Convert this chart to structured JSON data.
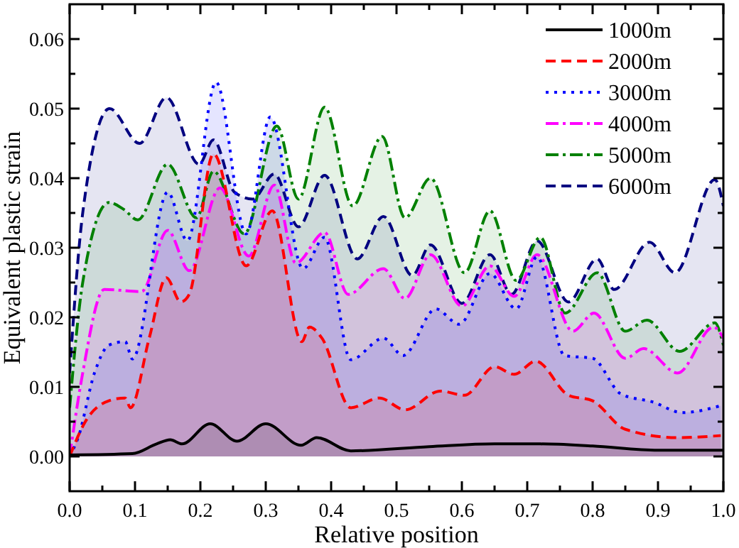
{
  "chart_data": {
    "type": "area",
    "xlabel": "Relative position",
    "ylabel": "Equivalent plastic strain",
    "xlim": [
      0,
      1
    ],
    "ylim": [
      -0.005,
      0.065
    ],
    "xticks": [
      {
        "value": 0,
        "label": "0.0"
      },
      {
        "value": 0.05,
        "label": null
      },
      {
        "value": 0.1,
        "label": "0.1"
      },
      {
        "value": 0.15,
        "label": null
      },
      {
        "value": 0.2,
        "label": "0.2"
      },
      {
        "value": 0.25,
        "label": null
      },
      {
        "value": 0.3,
        "label": "0.3"
      },
      {
        "value": 0.35,
        "label": null
      },
      {
        "value": 0.4,
        "label": "0.4"
      },
      {
        "value": 0.45,
        "label": null
      },
      {
        "value": 0.5,
        "label": "0.5"
      },
      {
        "value": 0.55,
        "label": null
      },
      {
        "value": 0.6,
        "label": "0.6"
      },
      {
        "value": 0.65,
        "label": null
      },
      {
        "value": 0.7,
        "label": "0.7"
      },
      {
        "value": 0.75,
        "label": null
      },
      {
        "value": 0.8,
        "label": "0.8"
      },
      {
        "value": 0.85,
        "label": null
      },
      {
        "value": 0.9,
        "label": "0.9"
      },
      {
        "value": 0.95,
        "label": null
      },
      {
        "value": 1,
        "label": "1.0"
      }
    ],
    "yticks": [
      {
        "value": 0,
        "label": "0.00"
      },
      {
        "value": 0.005,
        "label": null
      },
      {
        "value": 0.01,
        "label": "0.01"
      },
      {
        "value": 0.015,
        "label": null
      },
      {
        "value": 0.02,
        "label": "0.02"
      },
      {
        "value": 0.025,
        "label": null
      },
      {
        "value": 0.03,
        "label": "0.03"
      },
      {
        "value": 0.035,
        "label": null
      },
      {
        "value": 0.04,
        "label": "0.04"
      },
      {
        "value": 0.045,
        "label": null
      },
      {
        "value": 0.05,
        "label": "0.05"
      },
      {
        "value": 0.055,
        "label": null
      },
      {
        "value": 0.06,
        "label": "0.06"
      }
    ],
    "legend": "top right",
    "grid": false,
    "series": [
      {
        "name": "1000m",
        "color": "#000000",
        "line_style": "solid",
        "x": [
          0,
          0.096,
          0.133,
          0.154,
          0.172,
          0.215,
          0.256,
          0.3,
          0.354,
          0.378,
          0.43,
          0.55,
          0.65,
          0.72,
          0.8,
          0.9,
          1
        ],
        "values": [
          0.0002,
          0.0004,
          0.0018,
          0.0024,
          0.0018,
          0.0047,
          0.0022,
          0.0047,
          0.0016,
          0.0027,
          0.0008,
          0.0014,
          0.0018,
          0.0018,
          0.0015,
          0.0009,
          0.0009
        ]
      },
      {
        "name": "2000m",
        "color": "#ff0000",
        "line_style": "dashed",
        "x": [
          0,
          0.024,
          0.06,
          0.085,
          0.093,
          0.122,
          0.148,
          0.17,
          0.183,
          0.22,
          0.27,
          0.31,
          0.355,
          0.367,
          0.386,
          0.43,
          0.474,
          0.513,
          0.567,
          0.604,
          0.65,
          0.68,
          0.713,
          0.763,
          0.8,
          0.85,
          0.93,
          0.996
        ],
        "values": [
          0,
          0.005,
          0.008,
          0.0084,
          0.007,
          0.0171,
          0.0257,
          0.0222,
          0.0233,
          0.0435,
          0.0274,
          0.0353,
          0.0165,
          0.0186,
          0.017,
          0.007,
          0.0084,
          0.0067,
          0.0094,
          0.0088,
          0.0129,
          0.0118,
          0.0137,
          0.0088,
          0.008,
          0.0039,
          0.0027,
          0.003
        ]
      },
      {
        "name": "3000m",
        "color": "#0000ff",
        "line_style": "dotted",
        "x": [
          0,
          0.013,
          0.038,
          0.06,
          0.085,
          0.096,
          0.15,
          0.18,
          0.224,
          0.27,
          0.307,
          0.357,
          0.39,
          0.43,
          0.48,
          0.51,
          0.56,
          0.596,
          0.643,
          0.683,
          0.715,
          0.757,
          0.8,
          0.843,
          0.893,
          0.937,
          0.996
        ],
        "values": [
          0,
          0.0027,
          0.012,
          0.016,
          0.0165,
          0.014,
          0.038,
          0.031,
          0.0538,
          0.032,
          0.0488,
          0.027,
          0.0315,
          0.0139,
          0.017,
          0.0145,
          0.0212,
          0.019,
          0.0263,
          0.0212,
          0.0287,
          0.0145,
          0.0141,
          0.009,
          0.0078,
          0.0063,
          0.0073
        ]
      },
      {
        "name": "4000m",
        "color": "#ff00ff",
        "line_style": "dashdot",
        "x": [
          0,
          0.02,
          0.053,
          0.11,
          0.15,
          0.183,
          0.23,
          0.274,
          0.313,
          0.346,
          0.39,
          0.426,
          0.48,
          0.513,
          0.552,
          0.6,
          0.643,
          0.68,
          0.715,
          0.77,
          0.802,
          0.85,
          0.878,
          0.93,
          0.985,
          1
        ],
        "values": [
          0,
          0.012,
          0.024,
          0.0237,
          0.0325,
          0.0267,
          0.0386,
          0.0288,
          0.039,
          0.0278,
          0.0322,
          0.0233,
          0.027,
          0.0227,
          0.029,
          0.0216,
          0.0274,
          0.023,
          0.029,
          0.018,
          0.0206,
          0.0141,
          0.0155,
          0.012,
          0.0186,
          0.017
        ]
      },
      {
        "name": "5000m",
        "color": "#008000",
        "line_style": "dashdot",
        "x": [
          0,
          0.02,
          0.06,
          0.083,
          0.104,
          0.15,
          0.194,
          0.22,
          0.267,
          0.317,
          0.35,
          0.39,
          0.433,
          0.478,
          0.513,
          0.552,
          0.604,
          0.643,
          0.683,
          0.72,
          0.758,
          0.807,
          0.85,
          0.883,
          0.933,
          0.987,
          1
        ],
        "values": [
          0.007,
          0.025,
          0.0365,
          0.0355,
          0.034,
          0.042,
          0.0343,
          0.041,
          0.032,
          0.0475,
          0.037,
          0.0502,
          0.036,
          0.046,
          0.0343,
          0.04,
          0.0264,
          0.0353,
          0.0253,
          0.0315,
          0.0206,
          0.0264,
          0.018,
          0.0196,
          0.0151,
          0.0192,
          0.016
        ]
      },
      {
        "name": "6000m",
        "color": "#000080",
        "line_style": "dashed",
        "x": [
          0,
          0.02,
          0.061,
          0.107,
          0.148,
          0.198,
          0.22,
          0.252,
          0.28,
          0.313,
          0.35,
          0.39,
          0.44,
          0.48,
          0.524,
          0.552,
          0.6,
          0.643,
          0.676,
          0.715,
          0.763,
          0.807,
          0.833,
          0.887,
          0.926,
          0.987,
          1
        ],
        "values": [
          0.012,
          0.035,
          0.05,
          0.045,
          0.0516,
          0.042,
          0.0455,
          0.038,
          0.037,
          0.0406,
          0.033,
          0.0404,
          0.0284,
          0.0345,
          0.026,
          0.0304,
          0.022,
          0.029,
          0.0233,
          0.031,
          0.0222,
          0.0284,
          0.024,
          0.0308,
          0.0264,
          0.0398,
          0.036
        ]
      }
    ]
  }
}
